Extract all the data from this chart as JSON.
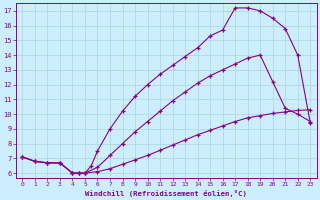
{
  "xlabel": "Windchill (Refroidissement éolien,°C)",
  "bg_color": "#cceeff",
  "line_color": "#880088",
  "xlim": [
    -0.5,
    23.5
  ],
  "ylim": [
    5.7,
    17.5
  ],
  "xticks": [
    0,
    1,
    2,
    3,
    4,
    5,
    6,
    7,
    8,
    9,
    10,
    11,
    12,
    13,
    14,
    15,
    16,
    17,
    18,
    19,
    20,
    21,
    22,
    23
  ],
  "yticks": [
    6,
    7,
    8,
    9,
    10,
    11,
    12,
    13,
    14,
    15,
    16,
    17
  ],
  "line1_x": [
    0,
    1,
    2,
    3,
    4,
    4.5,
    5,
    6,
    7,
    8,
    9,
    10,
    11,
    12,
    13,
    14,
    15,
    16,
    17,
    18,
    19,
    20,
    21,
    22,
    23
  ],
  "line1_y": [
    7.1,
    6.8,
    6.7,
    6.7,
    6.0,
    6.0,
    6.0,
    6.1,
    6.3,
    6.6,
    6.9,
    7.2,
    7.55,
    7.9,
    8.25,
    8.6,
    8.9,
    9.2,
    9.5,
    9.75,
    9.9,
    10.05,
    10.15,
    10.25,
    10.3
  ],
  "line2_x": [
    0,
    1,
    2,
    3,
    4,
    4.5,
    5,
    6,
    7,
    8,
    9,
    10,
    11,
    12,
    13,
    14,
    15,
    16,
    17,
    18,
    19,
    20,
    21,
    22,
    23
  ],
  "line2_y": [
    7.1,
    6.8,
    6.7,
    6.7,
    6.0,
    6.0,
    6.0,
    6.4,
    7.2,
    8.0,
    8.8,
    9.5,
    10.2,
    10.9,
    11.5,
    12.1,
    12.6,
    13.0,
    13.4,
    13.8,
    14.0,
    12.2,
    10.4,
    10.0,
    9.5
  ],
  "line3_x": [
    0,
    1,
    2,
    3,
    4,
    4.5,
    5,
    5.5,
    6,
    7,
    8,
    9,
    10,
    11,
    12,
    13,
    14,
    15,
    16,
    17,
    18,
    19,
    20,
    21,
    22,
    23
  ],
  "line3_y": [
    7.1,
    6.8,
    6.7,
    6.7,
    6.0,
    6.0,
    6.0,
    6.5,
    7.5,
    9.0,
    10.2,
    11.2,
    12.0,
    12.7,
    13.3,
    13.9,
    14.5,
    15.3,
    15.7,
    17.2,
    17.2,
    17.0,
    16.5,
    15.8,
    14.0,
    9.4
  ]
}
